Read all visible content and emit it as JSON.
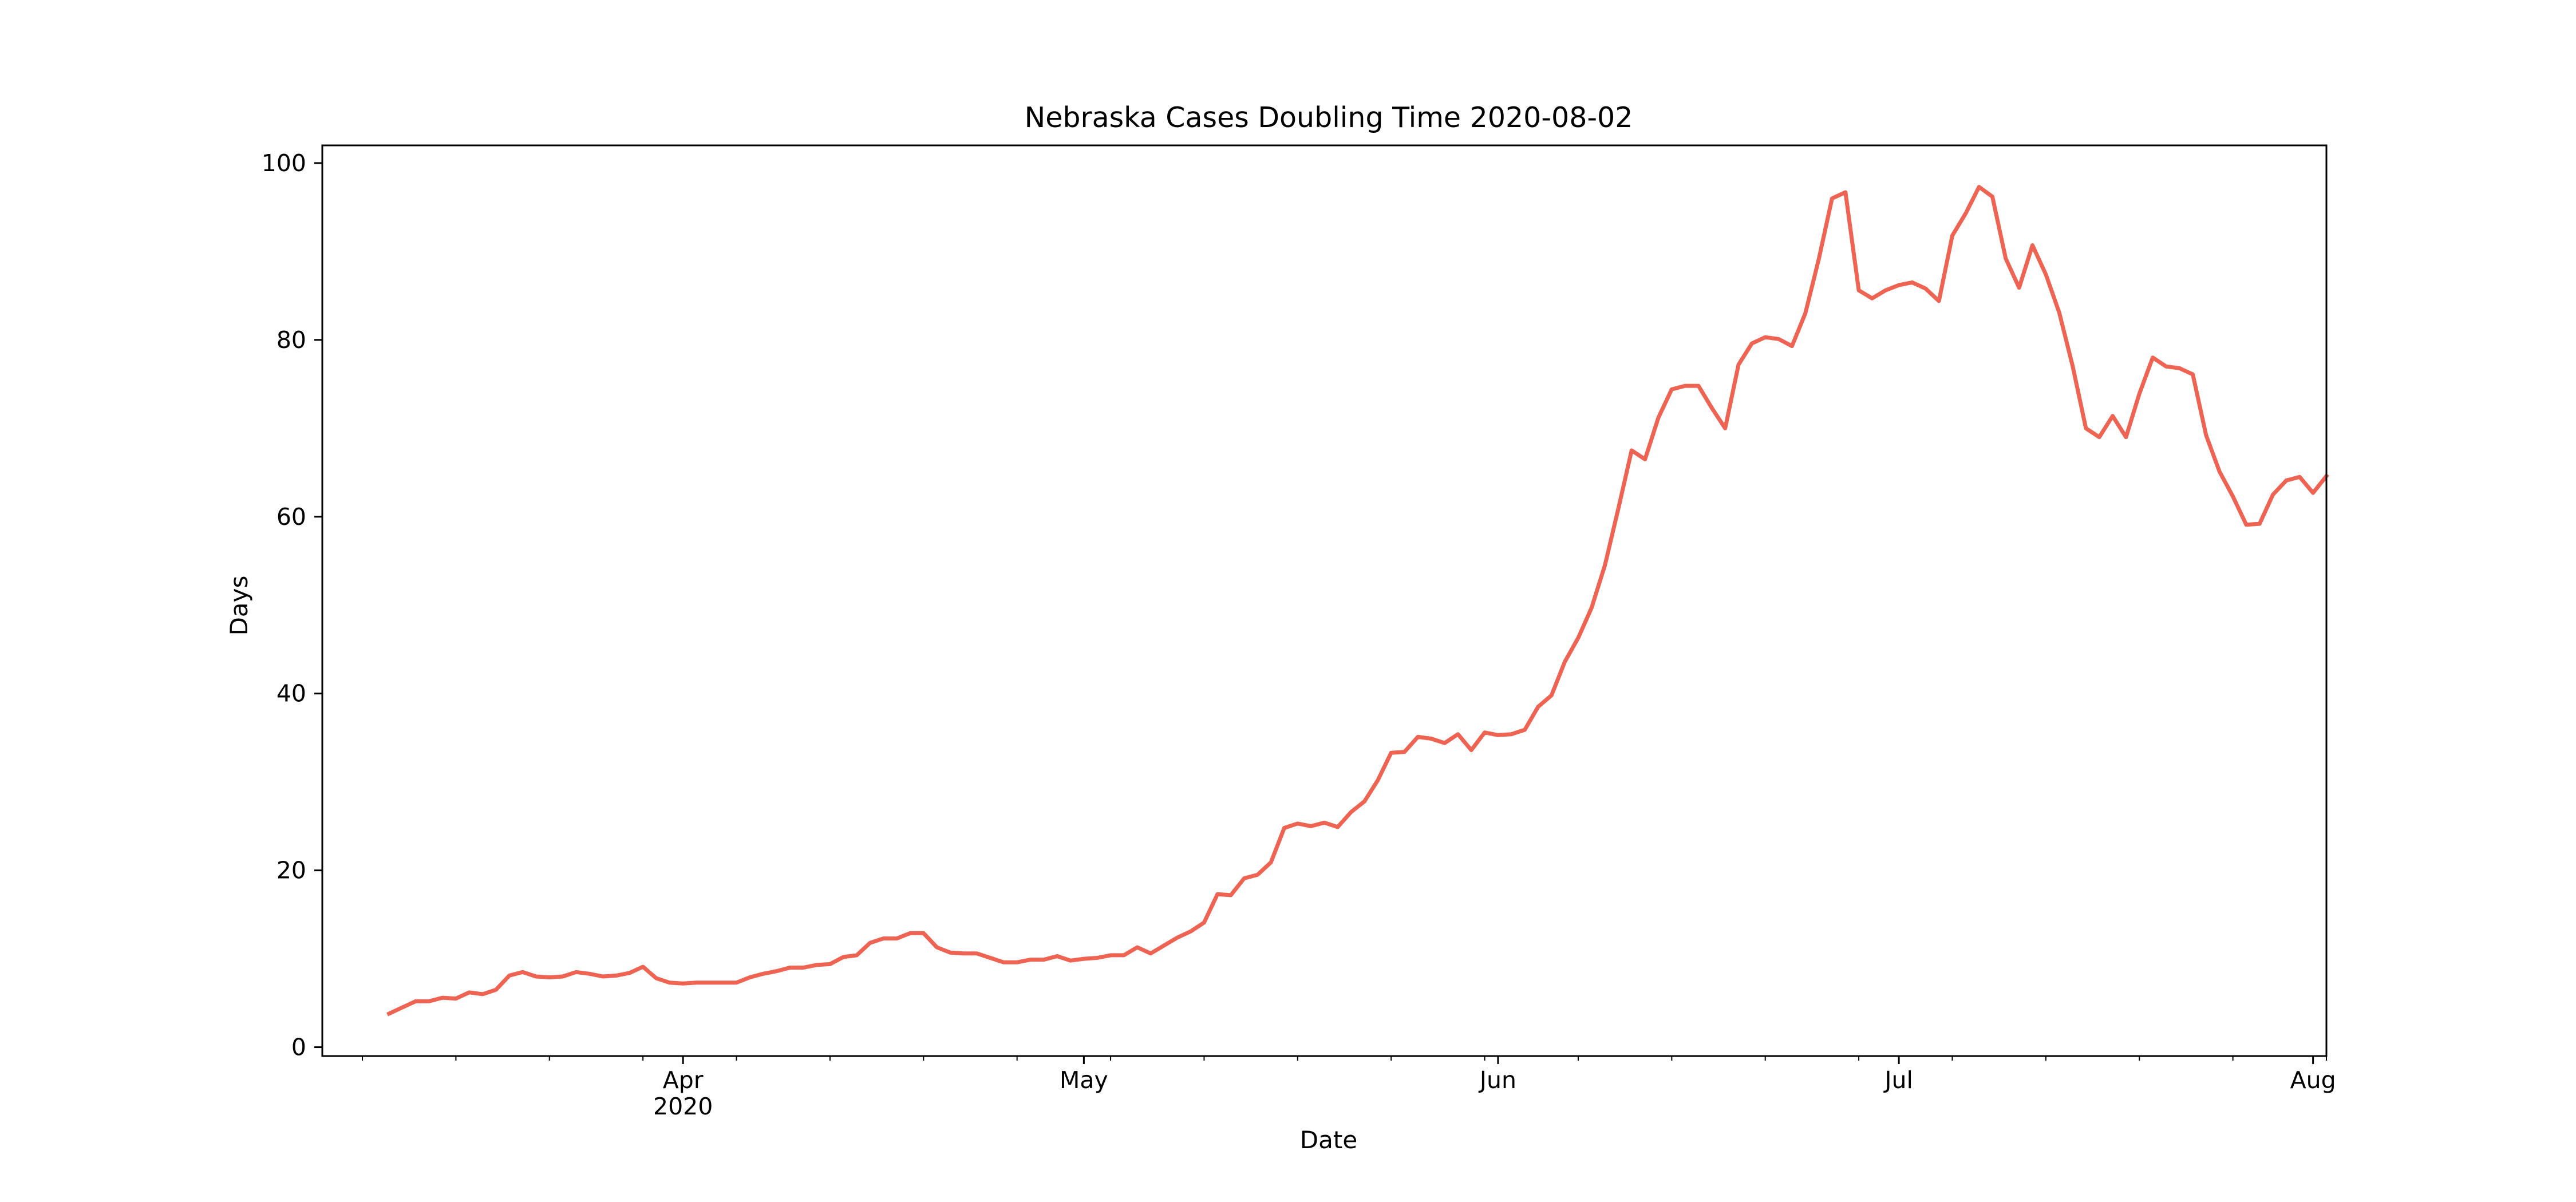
{
  "chart_data": {
    "type": "line",
    "title": "Nebraska Cases Doubling Time 2020-08-02",
    "xlabel": "Date",
    "ylabel": "Days",
    "x_axis": {
      "type": "date",
      "range": [
        "2020-03-05",
        "2020-08-02"
      ],
      "major_ticks": [
        {
          "date": "2020-04-01",
          "label": "Apr",
          "sublabel": "2020"
        },
        {
          "date": "2020-05-01",
          "label": "May",
          "sublabel": ""
        },
        {
          "date": "2020-06-01",
          "label": "Jun",
          "sublabel": ""
        },
        {
          "date": "2020-07-01",
          "label": "Jul",
          "sublabel": ""
        },
        {
          "date": "2020-08-01",
          "label": "Aug",
          "sublabel": ""
        }
      ],
      "minor_tick_weekday": "Sunday"
    },
    "y_axis": {
      "range": [
        -1,
        102
      ],
      "ticks": [
        0,
        20,
        40,
        60,
        80,
        100
      ]
    },
    "grid": false,
    "legend": "none",
    "series": [
      {
        "color": "#ee6351",
        "x_start": "2020-03-10",
        "x_step_days": 1,
        "values": [
          3.8,
          4.5,
          5.2,
          5.2,
          5.6,
          5.5,
          6.2,
          6.0,
          6.5,
          8.1,
          8.5,
          8.0,
          7.9,
          8.0,
          8.5,
          8.3,
          8.0,
          8.1,
          8.4,
          9.1,
          7.8,
          7.3,
          7.2,
          7.3,
          7.3,
          7.3,
          7.3,
          7.9,
          8.3,
          8.6,
          9.0,
          9.0,
          9.3,
          9.4,
          10.2,
          10.4,
          11.8,
          12.3,
          12.3,
          12.9,
          12.9,
          11.3,
          10.7,
          10.6,
          10.6,
          10.1,
          9.6,
          9.6,
          9.9,
          9.9,
          10.3,
          9.8,
          10.0,
          10.1,
          10.4,
          10.4,
          11.3,
          10.6,
          11.5,
          12.4,
          13.1,
          14.1,
          17.3,
          17.2,
          19.1,
          19.5,
          20.9,
          24.8,
          25.3,
          25.0,
          25.4,
          24.9,
          26.6,
          27.8,
          30.2,
          33.3,
          33.4,
          35.1,
          34.9,
          34.4,
          35.4,
          33.6,
          35.6,
          35.3,
          35.4,
          35.9,
          38.5,
          39.8,
          43.6,
          46.3,
          49.7,
          54.5,
          60.9,
          67.5,
          66.5,
          71.2,
          74.4,
          74.8,
          74.8,
          72.3,
          70.0,
          77.2,
          79.6,
          80.3,
          80.1,
          79.3,
          83.0,
          89.1,
          96.0,
          96.7,
          85.6,
          84.7,
          85.6,
          86.2,
          86.5,
          85.8,
          84.4,
          91.8,
          94.3,
          97.3,
          96.2,
          89.2,
          85.9,
          90.7,
          87.4,
          83.1,
          77.1,
          70.0,
          69.0,
          71.4,
          69.0,
          73.9,
          78.0,
          77.0,
          76.8,
          76.1,
          69.2,
          65.1,
          62.3,
          59.1,
          59.2,
          62.5,
          64.1,
          64.5,
          62.7,
          64.6
        ]
      }
    ]
  }
}
